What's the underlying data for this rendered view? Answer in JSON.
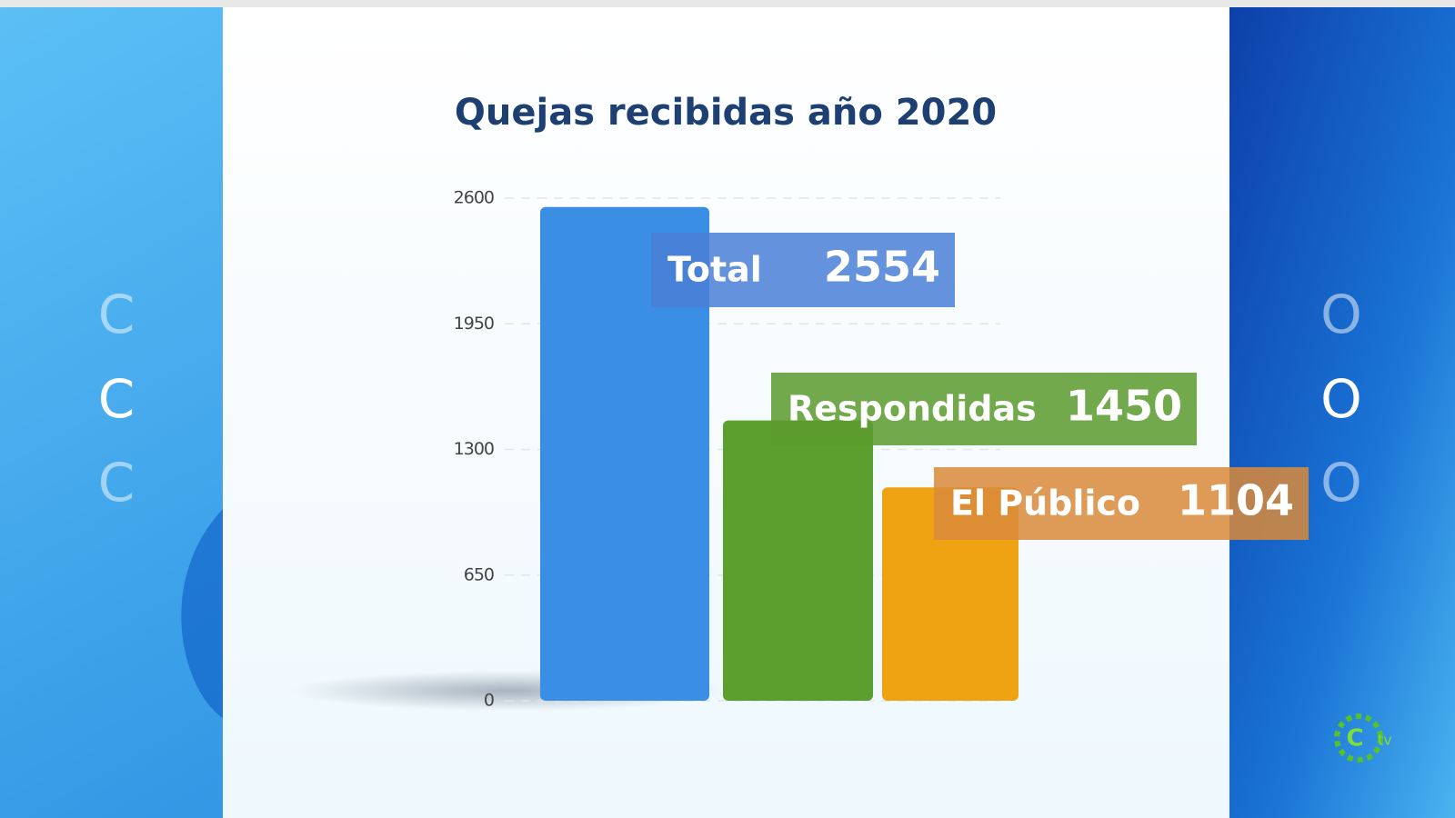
{
  "chart_data": {
    "type": "bar",
    "title": "Quejas recibidas año 2020",
    "categories": [
      "Total",
      "Respondidas",
      "El Público"
    ],
    "values": [
      2554,
      1450,
      1104
    ],
    "colors": [
      "#3a8ee4",
      "#5c9f2e",
      "#f0a312"
    ],
    "ylim": [
      0,
      2600
    ],
    "yticks": [
      0,
      650,
      1300,
      1950,
      2600
    ],
    "grid": true
  },
  "side_left": [
    "C",
    "C",
    "C"
  ],
  "side_right": [
    "O",
    "O",
    "O"
  ],
  "logo": "tv"
}
